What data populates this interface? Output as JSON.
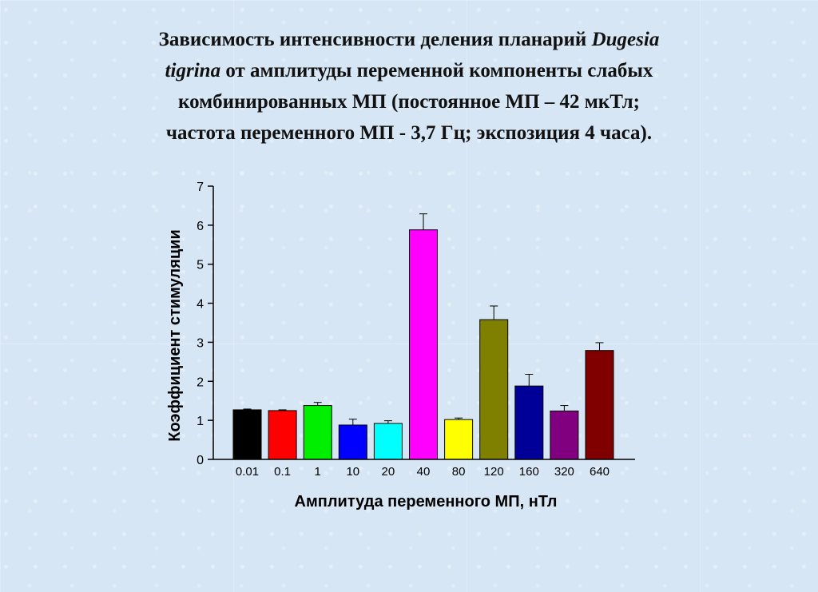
{
  "title": {
    "line1_prefix": "Зависимость интенсивности деления планарий ",
    "species_part1": "Dugesia",
    "species_part2": "tigrina",
    "line2_suffix": " от амплитуды  переменной компоненты слабых",
    "line3": "комбинированных МП (постоянное МП – 42 мкТл;",
    "line4": "частота переменного МП - 3,7 Гц; экспозиция 4 часа)."
  },
  "chart_data": {
    "type": "bar",
    "xlabel": "Амплитуда переменного МП, нТл",
    "ylabel": "Коэффициент стимуляции",
    "ylim": [
      0,
      7
    ],
    "yticks": [
      0,
      1,
      2,
      3,
      4,
      5,
      6,
      7
    ],
    "grid": false,
    "categories": [
      "0.01",
      "0.1",
      "1",
      "10",
      "20",
      "40",
      "80",
      "120",
      "160",
      "320",
      "640"
    ],
    "values": [
      1.27,
      1.25,
      1.38,
      0.88,
      0.92,
      5.88,
      1.02,
      3.58,
      1.88,
      1.24,
      2.79
    ],
    "errors": [
      0.02,
      0.02,
      0.08,
      0.15,
      0.07,
      0.41,
      0.04,
      0.35,
      0.3,
      0.14,
      0.2
    ],
    "colors": [
      "#000000",
      "#ff0000",
      "#00ee00",
      "#0000ff",
      "#00ffff",
      "#ff00ff",
      "#ffff00",
      "#808000",
      "#000099",
      "#800080",
      "#800000"
    ]
  }
}
